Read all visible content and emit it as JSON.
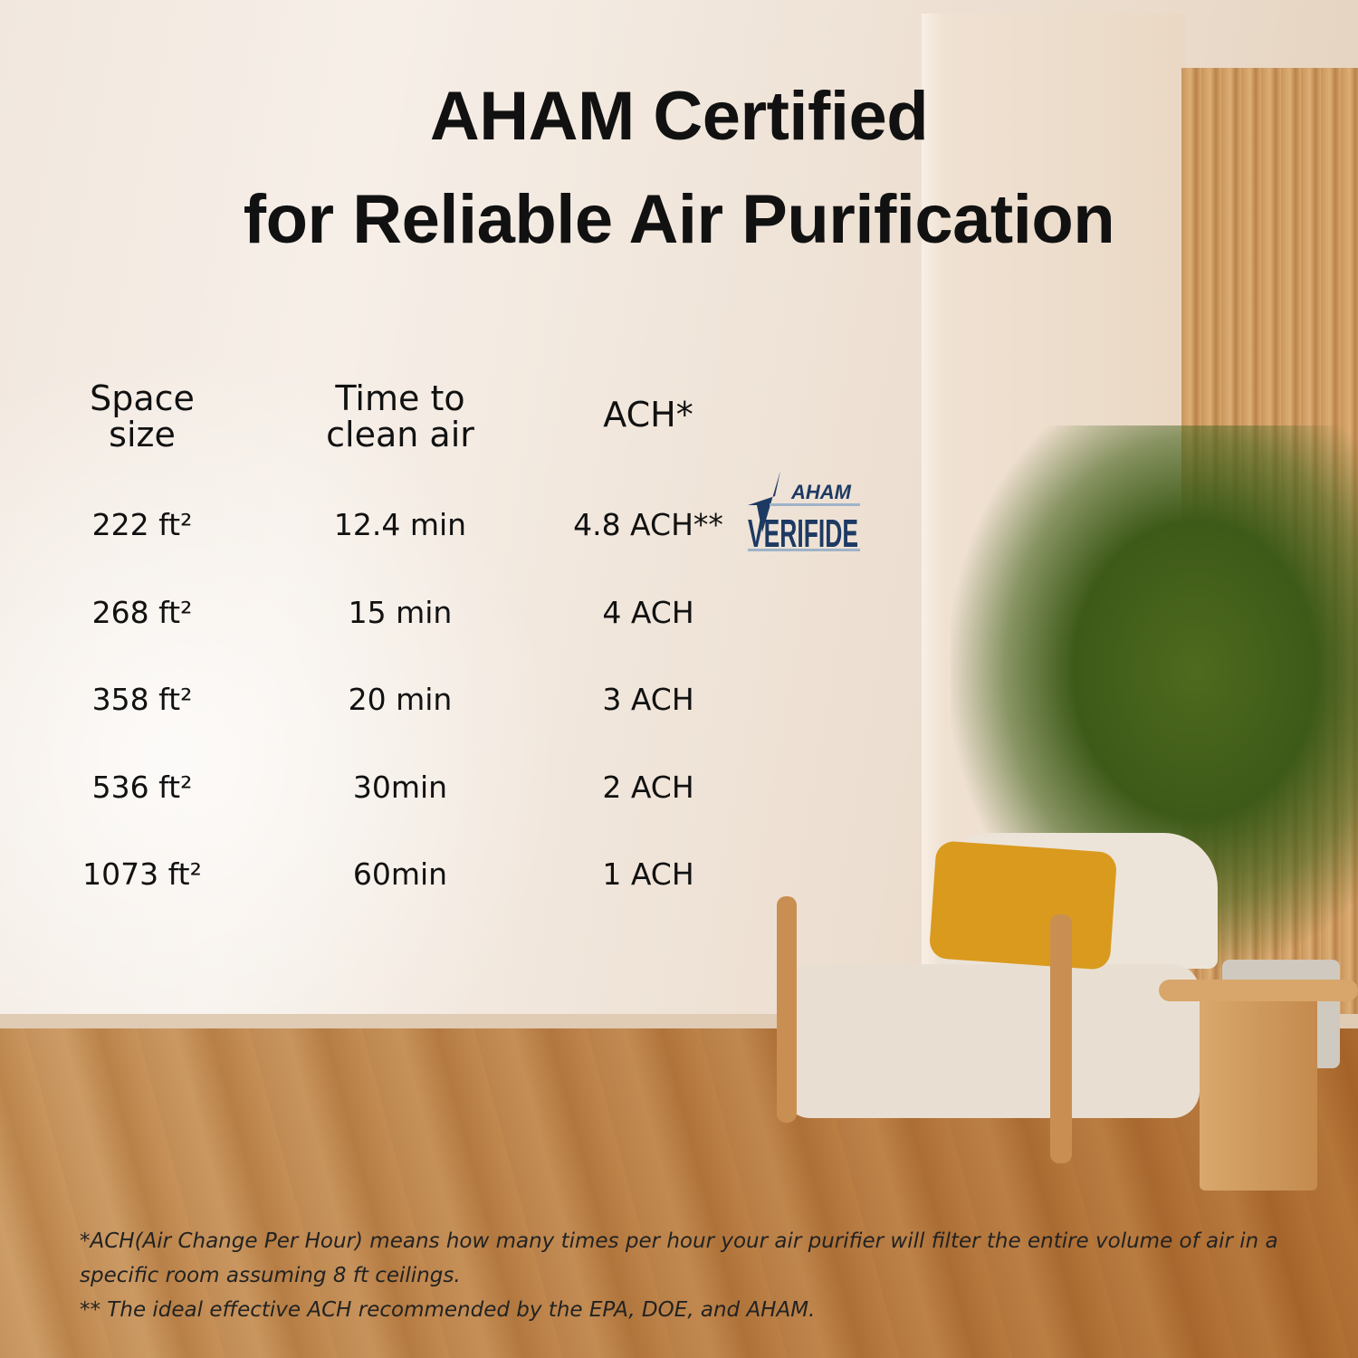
{
  "title": {
    "line1": "AHAM Certified",
    "line2": "for Reliable Air Purification"
  },
  "table": {
    "headers": {
      "space_l1": "Space",
      "space_l2": "size",
      "time_l1": "Time to",
      "time_l2": "clean air",
      "ach": "ACH*"
    },
    "rows": [
      {
        "space": "222 ft²",
        "time": "12.4 min",
        "ach": "4.8 ACH**"
      },
      {
        "space": "268 ft²",
        "time": "15 min",
        "ach": "4 ACH"
      },
      {
        "space": "358 ft²",
        "time": "20 min",
        "ach": "3 ACH"
      },
      {
        "space": "536 ft²",
        "time": "30min",
        "ach": "2 ACH"
      },
      {
        "space": "1073 ft²",
        "time": "60min",
        "ach": "1 ACH"
      }
    ]
  },
  "badge": {
    "top": "AHAM",
    "bottom": "VERIFIDE",
    "color": "#1d3a63"
  },
  "footnotes": {
    "note1": "*ACH(Air Change Per Hour) means how many times per hour your air purifier will filter the entire volume of air in a specific room assuming 8 ft ceilings.",
    "note2": "** The ideal effective ACH recommended by the EPA, DOE, and AHAM."
  }
}
